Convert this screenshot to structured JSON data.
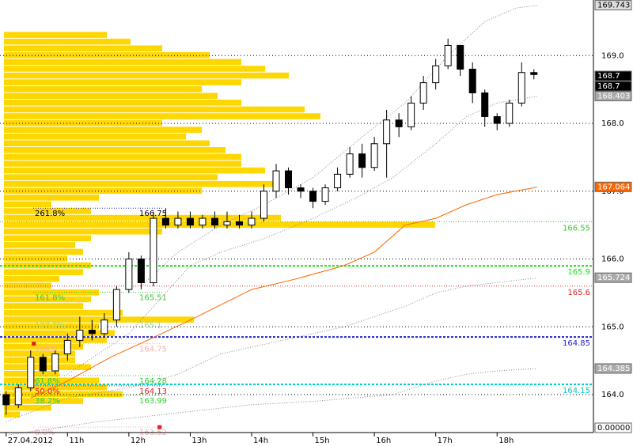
{
  "chart_data": {
    "type": "candlestick",
    "ylim": [
      163.44,
      169.82
    ],
    "xlim": [
      9.9,
      19.57
    ],
    "yticks": [
      {
        "value": 164,
        "label": "164.0"
      },
      {
        "value": 165,
        "label": "165.0"
      },
      {
        "value": 166,
        "label": "166.0"
      },
      {
        "value": 167,
        "label": "167.0"
      },
      {
        "value": 168,
        "label": "168.0"
      },
      {
        "value": 169,
        "label": "169.0"
      }
    ],
    "xticks": [
      {
        "value": 10,
        "label": "27.04.2012"
      },
      {
        "value": 11,
        "label": "11h"
      },
      {
        "value": 12,
        "label": "12h"
      },
      {
        "value": 13,
        "label": "13h"
      },
      {
        "value": 14,
        "label": "14h"
      },
      {
        "value": 15,
        "label": "15h"
      },
      {
        "value": 16,
        "label": "16h"
      },
      {
        "value": 17,
        "label": "17h"
      },
      {
        "value": 18,
        "label": "18h"
      }
    ],
    "x": [
      10.0,
      10.2,
      10.4,
      10.6,
      10.8,
      11.0,
      11.2,
      11.4,
      11.6,
      11.8,
      12.0,
      12.2,
      12.4,
      12.6,
      12.8,
      13.0,
      13.2,
      13.4,
      13.6,
      13.8,
      14.0,
      14.2,
      14.4,
      14.6,
      14.8,
      15.0,
      15.2,
      15.4,
      15.6,
      15.8,
      16.0,
      16.2,
      16.4,
      16.6,
      16.8,
      17.0,
      17.2,
      17.4,
      17.6,
      17.8,
      18.0,
      18.2,
      18.4,
      18.6
    ],
    "open": [
      164.0,
      163.85,
      164.1,
      164.55,
      164.35,
      164.6,
      164.8,
      164.95,
      164.9,
      165.1,
      165.55,
      166.0,
      165.65,
      166.6,
      166.5,
      166.6,
      166.5,
      166.6,
      166.5,
      166.55,
      166.5,
      166.6,
      167.0,
      167.3,
      167.05,
      167.0,
      166.85,
      167.05,
      167.25,
      167.55,
      167.35,
      167.7,
      168.05,
      167.95,
      168.3,
      168.6,
      168.85,
      169.15,
      168.8,
      168.45,
      168.1,
      168.0,
      168.3,
      168.75
    ],
    "high": [
      164.05,
      164.15,
      164.65,
      164.6,
      164.65,
      164.9,
      165.15,
      165.1,
      165.2,
      165.6,
      166.1,
      166.05,
      166.7,
      166.75,
      166.7,
      166.7,
      166.65,
      166.7,
      166.7,
      166.65,
      166.7,
      167.1,
      167.4,
      167.35,
      167.1,
      167.05,
      167.1,
      167.35,
      167.65,
      167.7,
      167.8,
      168.2,
      168.15,
      168.4,
      168.7,
      168.95,
      169.25,
      169.15,
      168.9,
      168.5,
      168.15,
      168.35,
      168.9,
      168.8
    ],
    "low": [
      163.7,
      163.8,
      164.05,
      164.3,
      164.3,
      164.5,
      164.7,
      164.8,
      164.85,
      165.0,
      165.5,
      165.55,
      165.6,
      166.45,
      166.45,
      166.45,
      166.45,
      166.45,
      166.45,
      166.45,
      166.45,
      166.55,
      166.9,
      166.95,
      166.9,
      166.75,
      166.8,
      167.0,
      167.2,
      167.2,
      167.3,
      167.2,
      167.8,
      167.9,
      168.2,
      168.5,
      168.8,
      168.7,
      168.3,
      167.95,
      167.9,
      167.95,
      168.25,
      168.65
    ],
    "close": [
      163.85,
      164.1,
      164.55,
      164.35,
      164.6,
      164.8,
      164.95,
      164.9,
      165.1,
      165.55,
      166.0,
      165.65,
      166.6,
      166.5,
      166.6,
      166.5,
      166.6,
      166.5,
      166.55,
      166.5,
      166.6,
      167.0,
      167.3,
      167.05,
      167.0,
      166.85,
      167.05,
      167.25,
      167.55,
      167.35,
      167.7,
      168.05,
      167.95,
      168.3,
      168.6,
      168.85,
      169.15,
      168.8,
      168.45,
      168.1,
      168.0,
      168.3,
      168.75,
      168.72
    ],
    "volume_profile": {
      "color": "#ffd700",
      "step": 0.1,
      "levels": [
        163.7,
        163.8,
        163.9,
        164.0,
        164.1,
        164.2,
        164.3,
        164.4,
        164.5,
        164.6,
        164.7,
        164.8,
        164.9,
        165.0,
        165.1,
        165.2,
        165.3,
        165.4,
        165.5,
        165.6,
        165.7,
        165.8,
        165.9,
        166.0,
        166.1,
        166.2,
        166.3,
        166.4,
        166.5,
        166.6,
        166.7,
        166.8,
        166.9,
        167.0,
        167.1,
        167.2,
        167.3,
        167.4,
        167.5,
        167.6,
        167.7,
        167.8,
        167.9,
        168.0,
        168.1,
        168.2,
        168.3,
        168.4,
        168.5,
        168.6,
        168.7,
        168.8,
        168.9,
        169.0,
        169.1,
        169.2,
        169.3
      ],
      "volumes": [
        20,
        60,
        100,
        150,
        130,
        120,
        70,
        110,
        90,
        90,
        100,
        130,
        140,
        120,
        240,
        150,
        100,
        110,
        120,
        60,
        70,
        100,
        110,
        80,
        100,
        90,
        110,
        200,
        545,
        350,
        110,
        60,
        120,
        250,
        340,
        270,
        330,
        300,
        300,
        280,
        260,
        230,
        250,
        200,
        400,
        380,
        300,
        270,
        250,
        300,
        360,
        330,
        300,
        260,
        200,
        160,
        130
      ]
    },
    "indicators": [
      {
        "color": "#ff6600",
        "style": "solid",
        "x": [
          10.4,
          11.0,
          11.7,
          12.3,
          13.0,
          14.0,
          14.7,
          15.5,
          16.0,
          16.5,
          17.0,
          17.5,
          18.0,
          18.65
        ],
        "values": [
          163.95,
          164.2,
          164.55,
          164.8,
          165.1,
          165.55,
          165.7,
          165.9,
          166.1,
          166.5,
          166.6,
          166.8,
          166.95,
          167.06
        ]
      },
      {
        "color": "#888888",
        "style": "dotted",
        "x": [
          12.2,
          12.8,
          13.5,
          14.2,
          15.0,
          15.8,
          16.5,
          17.2,
          17.8,
          18.3,
          18.65
        ],
        "values": [
          165.6,
          166.1,
          166.5,
          166.8,
          167.2,
          167.8,
          168.3,
          169.0,
          169.5,
          169.7,
          169.74
        ]
      },
      {
        "color": "#888888",
        "style": "dotted",
        "x": [
          11.0,
          12.0,
          12.5,
          13.0,
          13.5,
          14.2,
          15.0,
          15.7,
          16.3,
          17.0,
          17.5,
          18.0,
          18.65
        ],
        "values": [
          164.3,
          164.9,
          165.4,
          165.9,
          166.1,
          166.3,
          166.6,
          166.9,
          167.2,
          167.7,
          168.1,
          168.3,
          168.4
        ]
      },
      {
        "color": "#888888",
        "style": "dotted",
        "x": [
          10.0,
          11.0,
          12.0,
          12.8,
          13.5,
          14.5,
          15.5,
          16.5,
          17.0,
          17.5,
          18.65
        ],
        "values": [
          163.6,
          163.95,
          164.1,
          164.3,
          164.6,
          164.8,
          165.0,
          165.3,
          165.5,
          165.6,
          165.72
        ]
      },
      {
        "color": "#888888",
        "style": "dotted",
        "x": [
          10.0,
          11.5,
          12.5,
          14.0,
          15.0,
          16.3,
          17.0,
          17.5,
          18.0,
          18.65
        ],
        "values": [
          163.4,
          163.6,
          163.7,
          163.85,
          163.9,
          164.0,
          164.2,
          164.3,
          164.35,
          164.385
        ]
      }
    ],
    "levels": [
      {
        "value": 166.55,
        "color": "#33cc33",
        "style": "dotted"
      },
      {
        "value": 165.9,
        "color": "#00ee00",
        "style": "dashed"
      },
      {
        "value": 165.6,
        "color": "#dd2222",
        "style": "dotted"
      },
      {
        "value": 164.85,
        "color": "#2222cc",
        "style": "dashed"
      },
      {
        "value": 164.15,
        "color": "#00cccc",
        "style": "dashed"
      }
    ],
    "fibonacci": [
      {
        "ratio": "261.8%",
        "price": 166.75,
        "color": "#2222cc"
      },
      {
        "ratio": "161.8%",
        "price": 165.51,
        "color": "#33cc33"
      },
      {
        "ratio": "127.2%",
        "price": 165.1,
        "color": "#99dd99"
      },
      {
        "ratio": "100%",
        "price": 164.75,
        "color": "#f4b0b0"
      },
      {
        "ratio": "61.8%",
        "price": 164.28,
        "color": "#33cc33"
      },
      {
        "ratio": "50.0%",
        "price": 164.13,
        "color": "#dd2222"
      },
      {
        "ratio": "38.2%",
        "price": 163.99,
        "color": "#33cc33"
      },
      {
        "ratio": "0.0%",
        "price": 163.52,
        "color": "#f4b0b0"
      }
    ],
    "markers": {
      "color": "#dd2222",
      "x": [
        10.45,
        12.5
      ],
      "values": [
        164.75,
        163.52
      ]
    },
    "price_tags": [
      {
        "value": 169.743,
        "color": "#dddddd"
      },
      {
        "value": 168.7,
        "color": "#000000"
      },
      {
        "value": 168.7,
        "color": "#000000"
      },
      {
        "value": 168.7,
        "color": "#000000"
      },
      {
        "value": 168.403,
        "color": "#aaaaaa"
      },
      {
        "value": 167.064,
        "color": "#ff6600"
      },
      {
        "value": 165.724,
        "color": "#aaaaaa"
      },
      {
        "value": 164.385,
        "color": "#aaaaaa"
      }
    ],
    "indicator_value": {
      "value": 0,
      "label": "0.00000"
    }
  }
}
